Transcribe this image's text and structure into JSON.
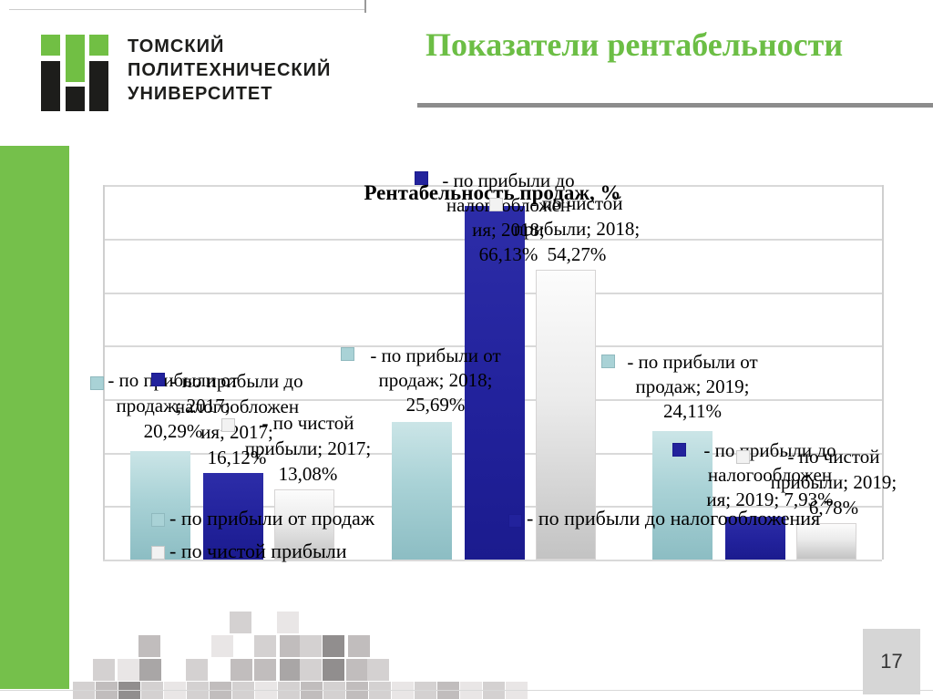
{
  "header": {
    "title": "Показатели рентабельности",
    "logo_lines": [
      "ТОМСКИЙ",
      "ПОЛИТЕХНИЧЕСКИЙ",
      "УНИВЕРСИТЕТ"
    ]
  },
  "footer": {
    "page_number": "17"
  },
  "colors": {
    "title_green": "#6cbe45",
    "logo_green": "#71bf44",
    "sidebar_green": "#75c04b",
    "divider_gray": "#8c8c8c",
    "series_sales": "#a9d2d6",
    "series_pretax": "#22229c",
    "series_net": "#efefef"
  },
  "chart_data": {
    "type": "bar",
    "title": "Рентабельность продаж, %",
    "categories": [
      "2017",
      "2018",
      "2019"
    ],
    "series": [
      {
        "name": "по прибыли от продаж",
        "key": "sales",
        "values": [
          20.29,
          25.69,
          24.11
        ]
      },
      {
        "name": "по прибыли до налогообложения",
        "key": "pretax",
        "values": [
          16.12,
          66.13,
          7.93
        ]
      },
      {
        "name": "по чистой прибыли",
        "key": "net",
        "values": [
          13.08,
          54.27,
          6.78
        ]
      }
    ],
    "ylim": [
      0,
      70
    ],
    "grid": true,
    "legend_position": "bottom",
    "legend_entries": [
      "- по прибыли от продаж",
      "- по прибыли до налогообложения",
      "- по чистой прибыли"
    ],
    "data_labels": [
      {
        "series": 0,
        "category": "2017",
        "value": "20,29%",
        "lines": [
          "- по прибыли от",
          "продаж; 2017;",
          "20,29%"
        ]
      },
      {
        "series": 1,
        "category": "2017",
        "value": "16,12%",
        "lines": [
          "- по прибыли до",
          "налогообложен",
          "ия; 2017;",
          "16,12%"
        ]
      },
      {
        "series": 2,
        "category": "2017",
        "value": "13,08%",
        "lines": [
          "- по чистой",
          "прибыли; 2017;",
          "13,08%"
        ]
      },
      {
        "series": 0,
        "category": "2018",
        "value": "25,69%",
        "lines": [
          "- по прибыли от",
          "продаж; 2018;",
          "25,69%"
        ]
      },
      {
        "series": 1,
        "category": "2018",
        "value": "66,13%",
        "lines": [
          "- по прибыли до",
          "налогообложен",
          "ия; 2018;",
          "66,13%"
        ]
      },
      {
        "series": 2,
        "category": "2018",
        "value": "54,27%",
        "lines": [
          "- по чистой",
          "прибыли; 2018;",
          "54,27%"
        ]
      },
      {
        "series": 0,
        "category": "2019",
        "value": "24,11%",
        "lines": [
          "- по прибыли от",
          "продаж; 2019;",
          "24,11%"
        ]
      },
      {
        "series": 1,
        "category": "2019",
        "value": "7,93%",
        "lines": [
          "- по прибыли до",
          "налогообложен",
          "ия; 2019; 7,93%"
        ]
      },
      {
        "series": 2,
        "category": "2019",
        "value": "6,78%",
        "lines": [
          "- по чистой",
          "прибыли; 2019;",
          "6,78%"
        ]
      }
    ]
  }
}
